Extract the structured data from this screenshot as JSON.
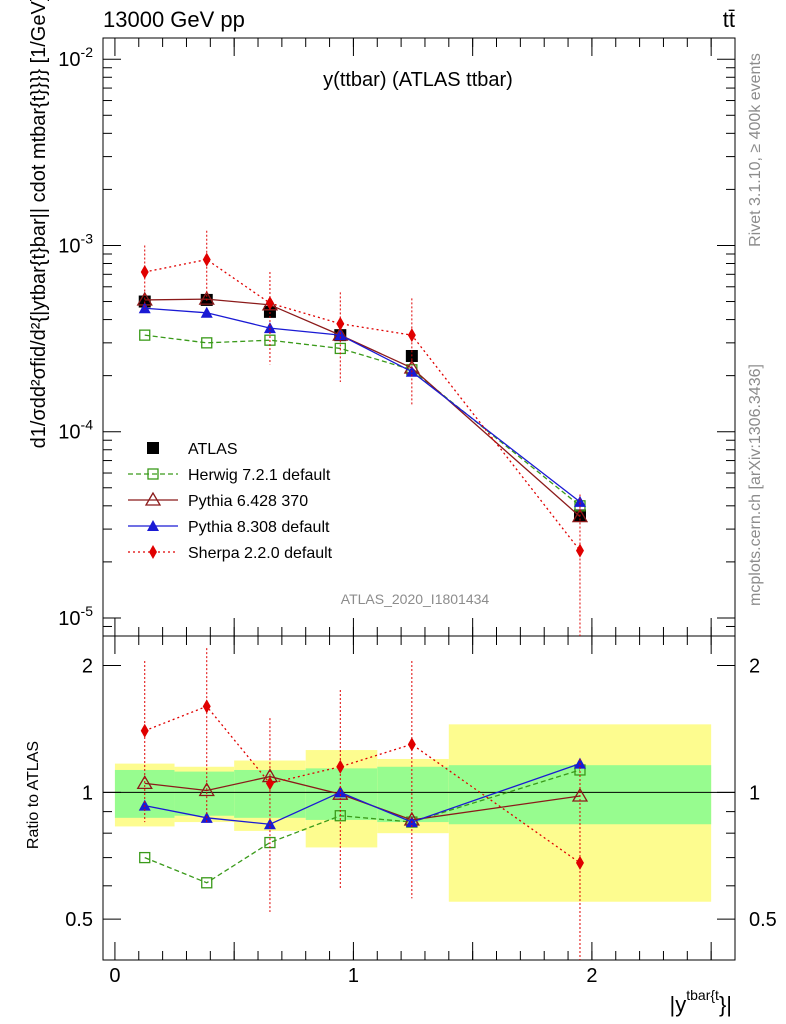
{
  "header": {
    "left": "13000 GeV pp",
    "right": "tt̄"
  },
  "side_labels": {
    "rivet": "Rivet 3.1.10, ≥ 400k events",
    "mcplots": "mcplots.cern.ch [arXiv:1306.3436]"
  },
  "main_plot": {
    "title": "y(ttbar) (ATLAS ttbar)",
    "ylabel": "d1/σdd²σfid/d²{|ytbar{t}bar|| cdot mtbar{t}}}} [1/GeV]",
    "ylabel_parts": {
      "frac1_num": "d",
      "frac1_den": "σ",
      "frac1_mid": "1",
      "d2_num": "d²σ",
      "d2_sup": "fid",
      "d2_den": "d² {|y",
      "d2_den_sup": "tbar{t",
      "rest": "cdot m",
      "rest_sup": "tbar{t",
      "tail": "}}} [1/GeV]"
    },
    "watermark": "ATLAS_2020_I1801434",
    "ytick_labels": [
      "10⁻²",
      "10⁻³",
      "10⁻⁴",
      "10⁻⁵"
    ],
    "ytick_base": "10",
    "ytick_exps": [
      "-2",
      "-3",
      "-4",
      "-5"
    ]
  },
  "ratio_plot": {
    "ylabel": "Ratio to ATLAS",
    "ytick_labels": [
      "2",
      "1",
      "0.5"
    ],
    "ytick_labels_right": [
      "2",
      "1",
      "0.5"
    ]
  },
  "x_axis": {
    "label_main": "|y",
    "label_sup": "tbar{t",
    "label_tail": "}|",
    "tick_labels": [
      "0",
      "1",
      "2"
    ]
  },
  "chart_data": {
    "type": "line",
    "title": "y(ttbar) (ATLAS ttbar)",
    "x_bins": [
      [
        0.0,
        0.25
      ],
      [
        0.25,
        0.5
      ],
      [
        0.5,
        0.8
      ],
      [
        0.8,
        1.1
      ],
      [
        1.1,
        1.4
      ],
      [
        1.4,
        2.5
      ]
    ],
    "x": [
      0.125,
      0.385,
      0.65,
      0.945,
      1.245,
      1.95
    ],
    "xlim": [
      -0.05,
      2.6
    ],
    "ylim_main": [
      8e-06,
      0.013
    ],
    "ylog": true,
    "ylim_ratio": [
      0.4,
      2.35
    ],
    "ratio_log": true,
    "legend_position": "center-left",
    "series": [
      {
        "name": "ATLAS",
        "color": "#000000",
        "marker": "square-filled",
        "values": [
          0.0005,
          0.00051,
          0.00044,
          0.00033,
          0.000255,
          3.55e-05
        ],
        "band_stat": [
          0.13,
          0.12,
          0.13,
          0.14,
          0.15,
          0.16
        ],
        "band_total": [
          0.17,
          0.15,
          0.19,
          0.26,
          0.2,
          0.45
        ]
      },
      {
        "name": "Herwig 7.2.1 default",
        "color": "#3a9a1a",
        "marker": "square-open",
        "line": "dashed",
        "values": [
          0.00033,
          0.0003,
          0.00031,
          0.00028,
          0.000215,
          4e-05
        ],
        "ratio": [
          0.7,
          0.61,
          0.76,
          0.88,
          0.85,
          1.13
        ]
      },
      {
        "name": "Pythia 6.428 370",
        "color": "#8b1a1a",
        "marker": "triangle-open",
        "line": "solid",
        "values": [
          0.00051,
          0.000515,
          0.00048,
          0.00033,
          0.00022,
          3.5e-05
        ],
        "ratio": [
          1.05,
          1.01,
          1.09,
          0.99,
          0.86,
          0.98
        ]
      },
      {
        "name": "Pythia 8.308 default",
        "color": "#1a1ad4",
        "marker": "triangle-filled",
        "line": "solid",
        "values": [
          0.00046,
          0.000435,
          0.00036,
          0.00033,
          0.00021,
          4.2e-05
        ],
        "ratio": [
          0.93,
          0.87,
          0.84,
          1.0,
          0.85,
          1.17
        ]
      },
      {
        "name": "Sherpa 2.2.0 default",
        "color": "#e00000",
        "marker": "diamond-filled",
        "line": "dotted",
        "values": [
          0.00072,
          0.00084,
          0.00049,
          0.00038,
          0.00033,
          2.3e-05
        ],
        "ratio": [
          1.4,
          1.6,
          1.05,
          1.15,
          1.3,
          0.68
        ],
        "ratio_err_low": [
          0.85,
          0.85,
          0.52,
          0.59,
          0.56,
          0.4
        ],
        "ratio_err_high": [
          2.05,
          2.2,
          1.5,
          1.75,
          2.05,
          1.2
        ],
        "err_low": [
          0.00045,
          0.0005,
          0.00023,
          0.000185,
          0.00014,
          7e-06
        ],
        "err_high": [
          0.001,
          0.0012,
          0.00072,
          0.00056,
          0.00052,
          4.6e-05
        ]
      }
    ]
  }
}
